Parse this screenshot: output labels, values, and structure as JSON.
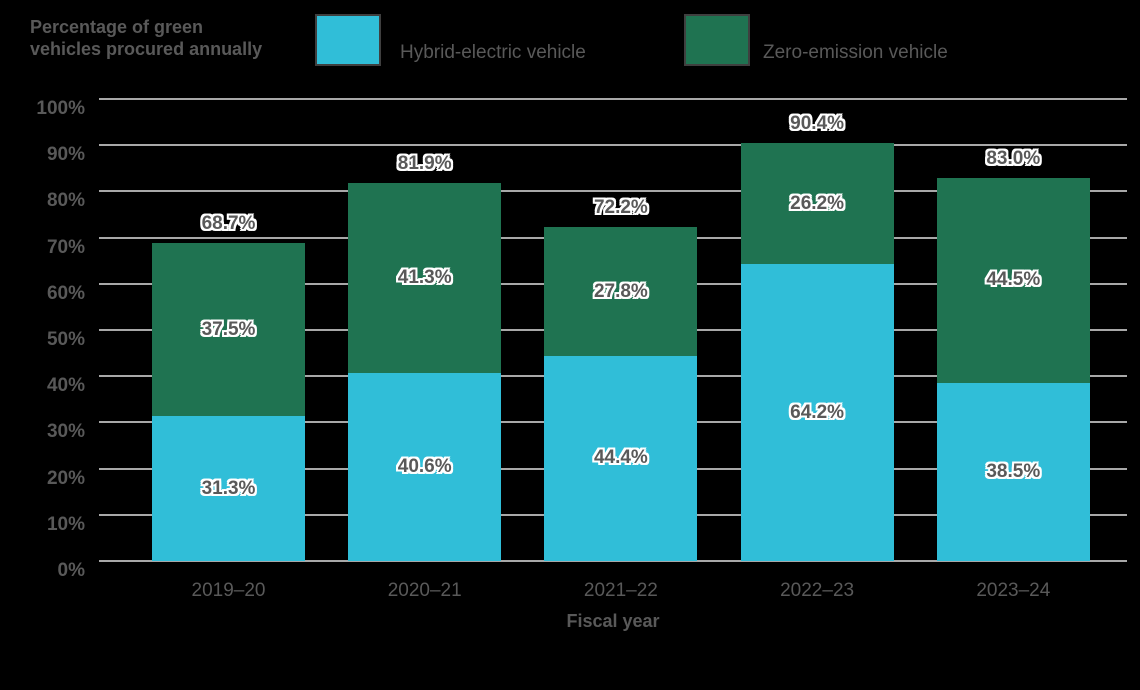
{
  "title": {
    "line1": "Percentage of green",
    "line2": "vehicles procured annually"
  },
  "legend": {
    "items": [
      {
        "label": "Hybrid-electric vehicle",
        "color": "#30BED8"
      },
      {
        "label": "Zero-emission vehicle",
        "color": "#1F7351"
      }
    ]
  },
  "axis": {
    "x_title": "Fiscal year",
    "y_tick_labels": [
      "0%",
      "10%",
      "20%",
      "30%",
      "40%",
      "50%",
      "60%",
      "70%",
      "80%",
      "90%",
      "100%"
    ]
  },
  "chart_data": {
    "type": "bar",
    "stacked": true,
    "title": "Percentage of green vehicles procured annually",
    "xlabel": "Fiscal year",
    "ylabel": "Percentage of green vehicles procured annually",
    "ylim": [
      0,
      100
    ],
    "ytick_step": 10,
    "grid": true,
    "legend_position": "top",
    "categories": [
      "2019–20",
      "2020–21",
      "2021–22",
      "2022–23",
      "2023–24"
    ],
    "series": [
      {
        "name": "Hybrid-electric vehicle",
        "color": "#30BED8",
        "values": [
          31.3,
          40.6,
          44.4,
          64.2,
          38.5
        ]
      },
      {
        "name": "Zero-emission vehicle",
        "color": "#1F7351",
        "values": [
          37.5,
          41.3,
          27.8,
          26.2,
          44.5
        ]
      }
    ],
    "totals": [
      "68.7%",
      "81.9%",
      "72.2%",
      "90.4%",
      "83.0%"
    ]
  },
  "colors": {
    "background": "#000000",
    "grid": "#A8A8A8",
    "text": "#595959",
    "label_halo": "#FFFFFF",
    "swatch_border": "#3F3F3F"
  }
}
